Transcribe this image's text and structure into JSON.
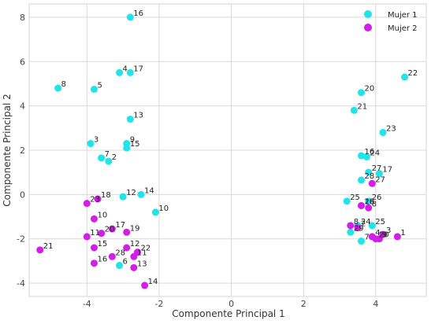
{
  "chart_data": {
    "type": "scatter",
    "xlabel": "Componente Principal 1",
    "ylabel": "Componente Principal 2",
    "xlim": [
      -5.6,
      5.4
    ],
    "ylim": [
      -4.6,
      8.6
    ],
    "xticks": [
      -4,
      -2,
      0,
      2,
      4
    ],
    "yticks": [
      -4,
      -2,
      0,
      2,
      4,
      6,
      8
    ],
    "grid": true,
    "legend_position": "top-right",
    "series": [
      {
        "name": "Mujer 1",
        "color": "#1fe5ea",
        "points": [
          {
            "label": "16",
            "x": -2.8,
            "y": 8.0
          },
          {
            "label": "4",
            "x": -3.1,
            "y": 5.5
          },
          {
            "label": "17",
            "x": -2.8,
            "y": 5.5
          },
          {
            "label": "8",
            "x": -4.8,
            "y": 4.8
          },
          {
            "label": "5",
            "x": -3.8,
            "y": 4.75
          },
          {
            "label": "13",
            "x": -2.8,
            "y": 3.4
          },
          {
            "label": "3",
            "x": -3.9,
            "y": 2.3
          },
          {
            "label": "9",
            "x": -2.9,
            "y": 2.3
          },
          {
            "label": "15",
            "x": -2.9,
            "y": 2.1
          },
          {
            "label": "7",
            "x": -3.6,
            "y": 1.65
          },
          {
            "label": "2",
            "x": -3.4,
            "y": 1.5
          },
          {
            "label": "12",
            "x": -3.0,
            "y": -0.1
          },
          {
            "label": "14",
            "x": -2.5,
            "y": 0.0
          },
          {
            "label": "10",
            "x": -2.1,
            "y": -0.8
          },
          {
            "label": "6",
            "x": -3.1,
            "y": -3.2
          },
          {
            "label": "22",
            "x": 4.8,
            "y": 5.3
          },
          {
            "label": "20",
            "x": 3.6,
            "y": 4.6
          },
          {
            "label": "21",
            "x": 3.4,
            "y": 3.8
          },
          {
            "label": "23",
            "x": 4.2,
            "y": 2.8
          },
          {
            "label": "16",
            "x": 3.6,
            "y": 1.75
          },
          {
            "label": "24",
            "x": 3.75,
            "y": 1.7
          },
          {
            "label": "27",
            "x": 3.8,
            "y": 1.0
          },
          {
            "label": "17",
            "x": 4.1,
            "y": 0.95
          },
          {
            "label": "28",
            "x": 3.6,
            "y": 0.65
          },
          {
            "label": "25",
            "x": 3.2,
            "y": -0.3
          },
          {
            "label": "26",
            "x": 3.8,
            "y": -0.3
          },
          {
            "label": "18",
            "x": 3.6,
            "y": -0.5
          },
          {
            "label": "24",
            "x": 3.5,
            "y": -1.4
          },
          {
            "label": "25",
            "x": 3.9,
            "y": -1.4
          },
          {
            "label": "29",
            "x": 3.3,
            "y": -1.7
          },
          {
            "label": "7",
            "x": 3.6,
            "y": -2.1
          }
        ]
      },
      {
        "name": "Mujer 2",
        "color": "#d41ee8",
        "points": [
          {
            "label": "23",
            "x": -4.0,
            "y": -0.4
          },
          {
            "label": "18",
            "x": -3.7,
            "y": -0.2
          },
          {
            "label": "10",
            "x": -3.8,
            "y": -1.1
          },
          {
            "label": "11",
            "x": -4.0,
            "y": -1.9
          },
          {
            "label": "20",
            "x": -3.6,
            "y": -1.75
          },
          {
            "label": "17",
            "x": -3.3,
            "y": -1.55
          },
          {
            "label": "19",
            "x": -2.9,
            "y": -1.7
          },
          {
            "label": "21",
            "x": -5.3,
            "y": -2.5
          },
          {
            "label": "15",
            "x": -3.8,
            "y": -2.4
          },
          {
            "label": "12",
            "x": -2.9,
            "y": -2.4
          },
          {
            "label": "22",
            "x": -2.6,
            "y": -2.6
          },
          {
            "label": "28",
            "x": -3.3,
            "y": -2.8
          },
          {
            "label": "11",
            "x": -2.7,
            "y": -2.8
          },
          {
            "label": "16",
            "x": -3.8,
            "y": -3.1
          },
          {
            "label": "13",
            "x": -2.7,
            "y": -3.3
          },
          {
            "label": "14",
            "x": -2.4,
            "y": -4.1
          },
          {
            "label": "26",
            "x": 3.6,
            "y": -0.5
          },
          {
            "label": "27",
            "x": 3.9,
            "y": 0.5
          },
          {
            "label": "8",
            "x": 3.8,
            "y": -0.6
          },
          {
            "label": "2",
            "x": 3.5,
            "y": -1.5
          },
          {
            "label": "8",
            "x": 3.3,
            "y": -1.4
          },
          {
            "label": "3",
            "x": 4.2,
            "y": -1.8
          },
          {
            "label": "1",
            "x": 4.6,
            "y": -1.9
          },
          {
            "label": "4",
            "x": 3.9,
            "y": -1.9
          },
          {
            "label": "20",
            "x": 4.0,
            "y": -2.0
          },
          {
            "label": "9",
            "x": 4.1,
            "y": -2.0
          }
        ]
      }
    ]
  }
}
